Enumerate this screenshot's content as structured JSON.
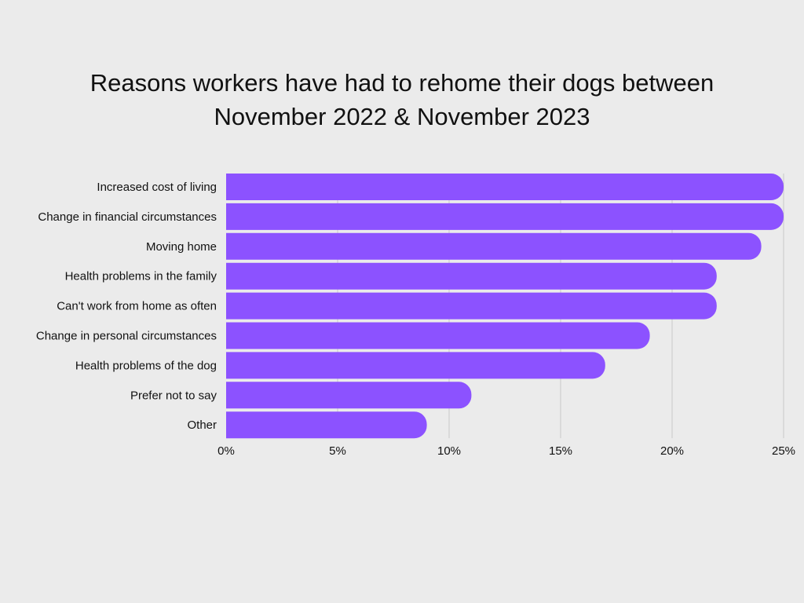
{
  "chart_data": {
    "type": "bar",
    "orientation": "horizontal",
    "title_lines": [
      "Reasons workers have had to rehome their dogs between",
      "November 2022 & November 2023"
    ],
    "categories": [
      "Increased cost of living",
      "Change in financial circumstances",
      "Moving home",
      "Health problems in the family",
      "Can't work from home as often",
      "Change in personal circumstances",
      "Health problems of the dog",
      "Prefer not to say",
      "Other"
    ],
    "values": [
      25,
      25,
      24,
      22,
      22,
      19,
      17,
      11,
      9
    ],
    "unit": "%",
    "xlim": [
      0,
      25
    ],
    "x_ticks": [
      0,
      5,
      10,
      15,
      20,
      25
    ],
    "x_tick_labels": [
      "0%",
      "5%",
      "10%",
      "15%",
      "20%",
      "25%"
    ],
    "grid": true,
    "color": "#8c52ff"
  }
}
